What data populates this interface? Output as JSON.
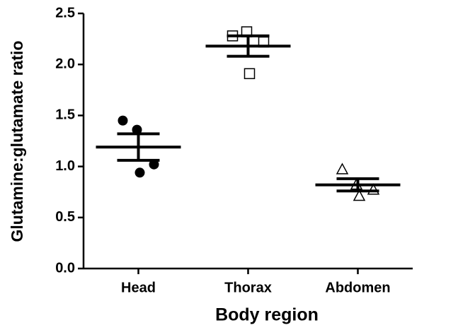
{
  "chart_data": {
    "type": "scatter",
    "x_label": "Body region",
    "y_label": "Glutamine:glutamate ratio",
    "categories": [
      "Head",
      "Thorax",
      "Abdomen"
    ],
    "values": [
      [
        1.45,
        1.36,
        1.02,
        0.94
      ],
      [
        2.28,
        2.32,
        2.22,
        1.91
      ],
      [
        0.97,
        0.82,
        0.77,
        0.71
      ]
    ],
    "means": [
      1.19,
      2.18,
      0.82
    ],
    "errors": [
      0.13,
      0.1,
      0.06
    ],
    "markers": [
      "circle",
      "square",
      "triangle"
    ],
    "color": "#000000",
    "ylim": [
      0,
      2.5
    ],
    "yticks": [
      {
        "value": 0,
        "label": "0.0"
      },
      {
        "value": 0.5,
        "label": "0.5"
      },
      {
        "value": 1,
        "label": "1.0"
      },
      {
        "value": 1.5,
        "label": "1.5"
      },
      {
        "value": 2,
        "label": "2.0"
      },
      {
        "value": 2.5,
        "label": "2.5"
      }
    ]
  }
}
